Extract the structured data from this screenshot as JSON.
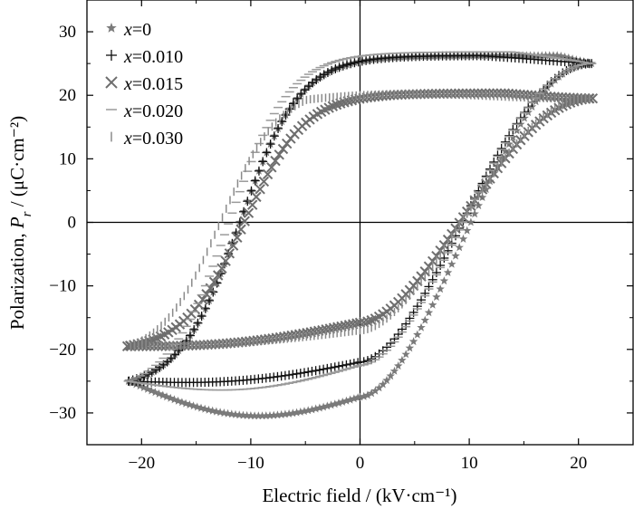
{
  "chart_data": {
    "type": "scatter",
    "xlabel": "Electric field / (kV·cm⁻¹)",
    "ylabel_main": "Polarization, ",
    "ylabel_var": "P",
    "ylabel_sub": "r",
    "ylabel_unit": " / (μC·cm⁻²)",
    "xlim": [
      -25,
      25
    ],
    "ylim": [
      -35,
      35
    ],
    "x_ticks": [
      -20,
      -10,
      0,
      10,
      20
    ],
    "y_ticks": [
      -30,
      -20,
      -10,
      0,
      10,
      20,
      30
    ],
    "x_tick_labels": [
      "−20",
      "−10",
      "0",
      "10",
      "20"
    ],
    "y_tick_labels": [
      "−30",
      "−20",
      "−10",
      "0",
      "10",
      "20",
      "30"
    ],
    "zero_lines": true,
    "legend_position": "top-left",
    "series": [
      {
        "name_var": "x",
        "name_val": "=0",
        "marker": "star",
        "color": "#7a7a7a",
        "Emax": 21.2,
        "Ps": 25.0,
        "Pr": 24.0,
        "Ec": 11.0,
        "Pstart": -27.5,
        "Pbulge": 29.6
      },
      {
        "name_var": "x",
        "name_val": "=0.010",
        "marker": "plus",
        "color": "#111111",
        "Emax": 21.2,
        "Ps": 25.0,
        "Pr": 24.0,
        "Ec": 11.0,
        "Pstart": -22.0,
        "Pbulge": 26.5
      },
      {
        "name_var": "x",
        "name_val": "=0.015",
        "marker": "cross",
        "color": "#6e6e6e",
        "Emax": 21.3,
        "Ps": 19.5,
        "Pr": 17.0,
        "Ec": 10.6,
        "Pstart": -15.8,
        "Pbulge": 20.8
      },
      {
        "name_var": "x",
        "name_val": "=0.020",
        "marker": "hdash",
        "color": "#9a9a9a",
        "Emax": 21.2,
        "Ps": 25.0,
        "Pr": 25.5,
        "Ec": 12.0,
        "Pstart": -22.5,
        "Pbulge": 27.8
      },
      {
        "name_var": "x",
        "name_val": "=0.030",
        "marker": "vdash",
        "color": "#8a8a8a",
        "Emax": 21.0,
        "Ps": 19.5,
        "Pr": 17.5,
        "Ec": 12.8,
        "Pstart": -17.0,
        "Pbulge": 20.2
      }
    ]
  }
}
